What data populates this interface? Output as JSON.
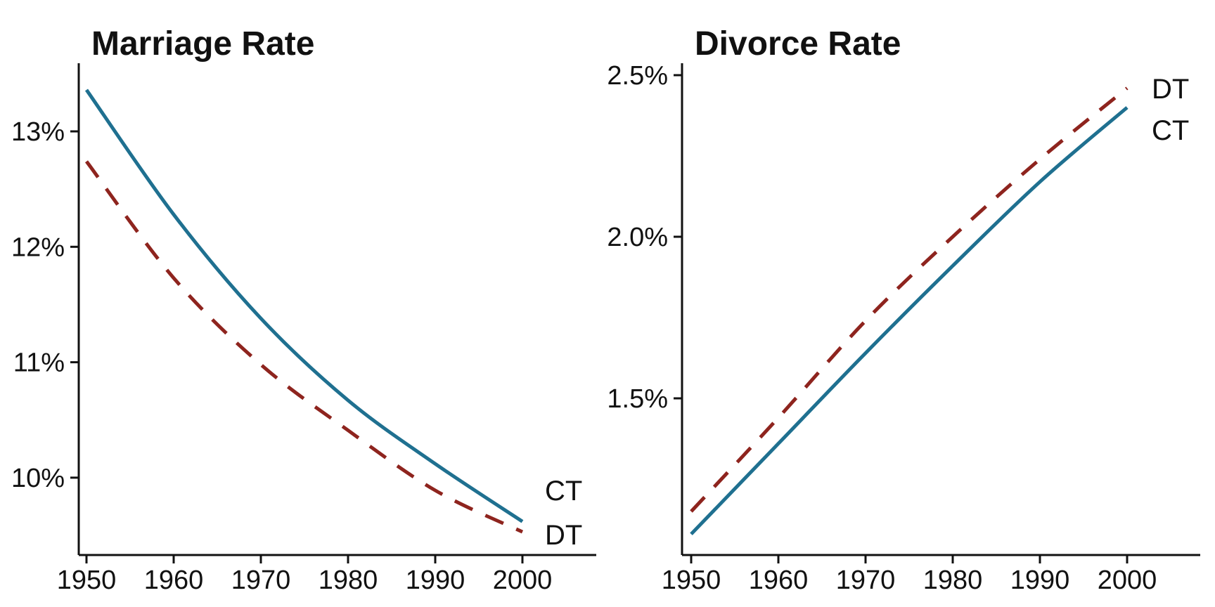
{
  "chart_data": [
    {
      "type": "line",
      "title": "Marriage Rate",
      "x": [
        1950,
        1960,
        1970,
        1980,
        1990,
        2000
      ],
      "x_tick_labels": [
        "1950",
        "1960",
        "1970",
        "1980",
        "1990",
        "2000"
      ],
      "y_tick_labels": [
        "13%",
        "12%",
        "11%",
        "10%"
      ],
      "y_tick_values": [
        13,
        12,
        11,
        10
      ],
      "ylim": [
        9.33,
        13.6
      ],
      "xlim": [
        1949,
        2008.5
      ],
      "grid": "off",
      "legend_position": "end-of-line",
      "series": [
        {
          "name": "CT",
          "style": "solid",
          "color": "#1f7090",
          "values": [
            13.36,
            12.28,
            11.38,
            10.67,
            10.12,
            9.62
          ]
        },
        {
          "name": "DT",
          "style": "dashed",
          "color": "#8e241e",
          "values": [
            12.74,
            11.73,
            10.98,
            10.41,
            9.89,
            9.53
          ]
        }
      ]
    },
    {
      "type": "line",
      "title": "Divorce Rate",
      "x": [
        1950,
        1960,
        1970,
        1980,
        1990,
        2000
      ],
      "x_tick_labels": [
        "1950",
        "1960",
        "1970",
        "1980",
        "1990",
        "2000"
      ],
      "y_tick_labels": [
        "2.5%",
        "2.0%",
        "1.5%"
      ],
      "y_tick_values": [
        2.5,
        2.0,
        1.5
      ],
      "ylim": [
        1.02,
        2.54
      ],
      "xlim": [
        1949,
        2008.5
      ],
      "grid": "off",
      "legend_position": "end-of-line",
      "series": [
        {
          "name": "CT",
          "style": "solid",
          "color": "#1f7090",
          "values": [
            1.08,
            1.36,
            1.64,
            1.91,
            2.17,
            2.4
          ]
        },
        {
          "name": "DT",
          "style": "dashed",
          "color": "#8e241e",
          "values": [
            1.15,
            1.44,
            1.74,
            2.0,
            2.24,
            2.46
          ]
        }
      ]
    }
  ]
}
